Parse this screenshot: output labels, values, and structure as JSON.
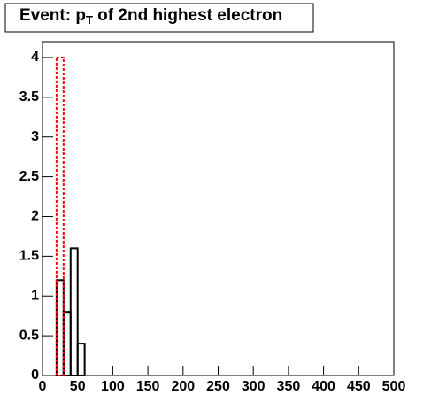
{
  "chart_data": {
    "type": "histogram",
    "title_parts": [
      "Event: p",
      "T",
      " of 2nd highest electron"
    ],
    "bins": [
      20,
      30,
      40,
      50,
      60
    ],
    "series": [
      {
        "color": "#000000",
        "line_style": "solid",
        "values": [
          1.2,
          0.8,
          1.6,
          0.4
        ]
      },
      {
        "color": "#ff0000",
        "line_style": "dotted",
        "values": [
          4,
          0,
          0,
          0
        ]
      }
    ],
    "xlim": [
      0,
      500
    ],
    "xticks": [
      0,
      50,
      100,
      150,
      200,
      250,
      300,
      350,
      400,
      450,
      500
    ],
    "ylim": [
      0,
      4.2
    ],
    "yticks": [
      0,
      0.5,
      1,
      1.5,
      2,
      2.5,
      3,
      3.5,
      4
    ]
  }
}
